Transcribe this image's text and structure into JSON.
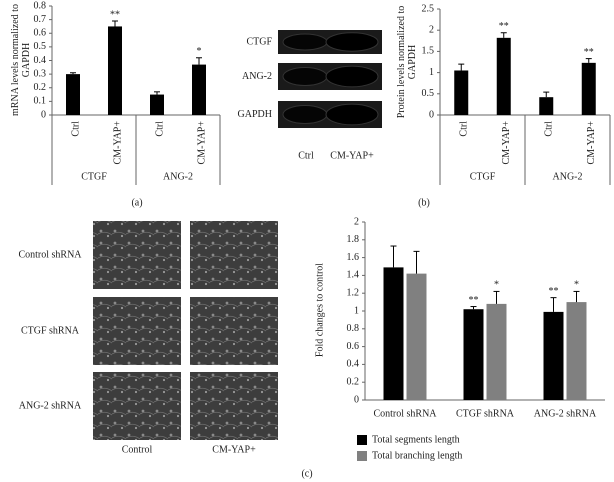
{
  "chart_data": [
    {
      "type": "bar",
      "panel_label": "(a)",
      "y_label": "mRNA levels normalized to GAPDH",
      "categories": [
        "Ctrl",
        "CM-YAP+",
        "Ctrl",
        "CM-YAP+"
      ],
      "groups": [
        "CTGF",
        "ANG-2"
      ],
      "values": [
        0.3,
        0.65,
        0.15,
        0.37
      ],
      "errors": [
        0.01,
        0.04,
        0.02,
        0.05
      ],
      "significance": [
        null,
        "**",
        null,
        "*"
      ],
      "color": "#000000",
      "ylim": [
        0,
        0.8
      ],
      "yticks": [
        0,
        0.1,
        0.2,
        0.3,
        0.4,
        0.5,
        0.6,
        0.7,
        0.8
      ]
    },
    {
      "type": "bar",
      "panel_label": "(b)",
      "y_label": "Protein levels normalized to GAPDH",
      "categories": [
        "Ctrl",
        "CM-YAP+",
        "Ctrl",
        "CM-YAP+"
      ],
      "groups": [
        "CTGF",
        "ANG-2"
      ],
      "values": [
        1.05,
        1.82,
        0.42,
        1.23
      ],
      "errors": [
        0.15,
        0.12,
        0.12,
        0.1
      ],
      "significance": [
        null,
        "**",
        null,
        "**"
      ],
      "color": "#000000",
      "ylim": [
        0,
        2.5
      ],
      "yticks": [
        0,
        0.5,
        1,
        1.5,
        2,
        2.5
      ]
    },
    {
      "type": "bar",
      "panel_label": "(c)",
      "y_label": "Fold changes to control",
      "categories": [
        "Control shRNA",
        "CTGF shRNA",
        "ANG-2 shRNA"
      ],
      "series": [
        {
          "name": "Total segments length",
          "color": "#000000",
          "values": [
            1.49,
            1.02,
            0.99
          ],
          "errors": [
            0.24,
            0.03,
            0.16
          ],
          "significance": [
            null,
            "**",
            "**"
          ]
        },
        {
          "name": "Total branching length",
          "color": "#808080",
          "values": [
            1.42,
            1.08,
            1.1
          ],
          "errors": [
            0.25,
            0.14,
            0.12
          ],
          "significance": [
            null,
            "*",
            "*"
          ]
        }
      ],
      "legend": "bottom",
      "ylim": [
        0,
        2
      ],
      "yticks": [
        0,
        0.2,
        0.4,
        0.6,
        0.8,
        1,
        1.2,
        1.4,
        1.6,
        1.8,
        2
      ]
    }
  ],
  "blot": {
    "rows": [
      "CTGF",
      "ANG-2",
      "GAPDH"
    ],
    "lanes": [
      "Ctrl",
      "CM-YAP+"
    ]
  },
  "micrographs": {
    "rows": [
      "Control shRNA",
      "CTGF shRNA",
      "ANG-2 shRNA"
    ],
    "columns": [
      "Control",
      "CM-YAP+"
    ]
  }
}
